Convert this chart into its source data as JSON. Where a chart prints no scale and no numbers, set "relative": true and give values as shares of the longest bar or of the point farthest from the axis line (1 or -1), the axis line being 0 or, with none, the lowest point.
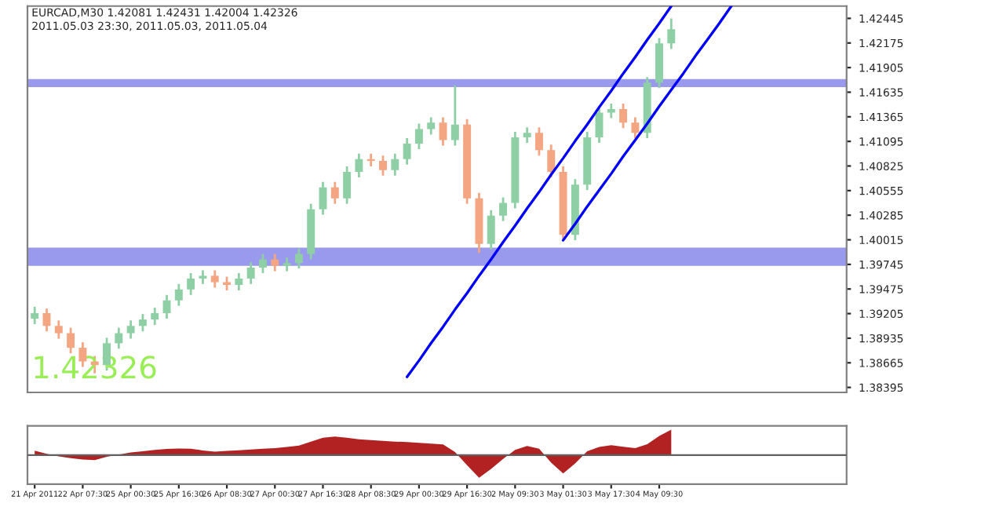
{
  "chart_data": [
    {
      "type": "candlestick",
      "title": "EURCAD,M30 1.42081 1.42431 1.42004 1.42326",
      "subtitle": "2011.05.03 23:30, 2011.05.03, 2011.05.04",
      "annotations": [
        "1.42326"
      ],
      "categories": [
        null,
        null,
        null,
        null,
        null,
        null,
        null,
        null,
        null,
        null,
        null,
        null,
        null,
        null,
        null,
        null,
        null,
        null,
        null,
        null,
        null,
        null,
        null,
        null,
        null,
        null,
        null,
        null,
        null,
        null,
        null,
        null,
        null,
        null,
        null,
        null,
        null,
        null,
        null,
        null,
        null,
        null,
        null,
        null,
        null,
        null,
        null,
        null,
        null,
        null,
        null,
        null,
        null,
        null,
        null,
        null,
        null,
        null,
        null,
        null,
        null,
        null,
        null,
        null,
        null,
        null,
        null,
        null
      ],
      "ohlc": [
        [
          1.3915,
          1.3928,
          1.3909,
          1.3921
        ],
        [
          1.3921,
          1.3926,
          1.3901,
          1.3907
        ],
        [
          1.3907,
          1.3913,
          1.3893,
          1.3899
        ],
        [
          1.3899,
          1.3905,
          1.3877,
          1.3883
        ],
        [
          1.3883,
          1.3889,
          1.3862,
          1.3868
        ],
        [
          1.3868,
          1.3874,
          1.3855,
          1.3864
        ],
        [
          1.3864,
          1.3894,
          1.3858,
          1.3888
        ],
        [
          1.3888,
          1.3905,
          1.3882,
          1.3899
        ],
        [
          1.3899,
          1.3913,
          1.3893,
          1.3907
        ],
        [
          1.3907,
          1.392,
          1.3901,
          1.3914
        ],
        [
          1.3914,
          1.3927,
          1.3908,
          1.3921
        ],
        [
          1.3921,
          1.3941,
          1.3915,
          1.3935
        ],
        [
          1.3935,
          1.3953,
          1.3929,
          1.3947
        ],
        [
          1.3947,
          1.3965,
          1.3941,
          1.3959
        ],
        [
          1.3959,
          1.3968,
          1.3953,
          1.3962
        ],
        [
          1.3962,
          1.3968,
          1.3949,
          1.3955
        ],
        [
          1.3955,
          1.3961,
          1.3946,
          1.3952
        ],
        [
          1.3952,
          1.3965,
          1.3946,
          1.3959
        ],
        [
          1.3959,
          1.3977,
          1.3953,
          1.3971
        ],
        [
          1.3971,
          1.3986,
          1.3965,
          1.398
        ],
        [
          1.398,
          1.3986,
          1.3967,
          1.3973
        ],
        [
          1.3973,
          1.3982,
          1.3967,
          1.3976
        ],
        [
          1.3976,
          1.3992,
          1.397,
          1.3986
        ],
        [
          1.3986,
          1.4041,
          1.398,
          1.4035
        ],
        [
          1.4035,
          1.4065,
          1.4029,
          1.4059
        ],
        [
          1.4059,
          1.4065,
          1.4041,
          1.4047
        ],
        [
          1.4047,
          1.4082,
          1.4041,
          1.4076
        ],
        [
          1.4076,
          1.4096,
          1.407,
          1.409
        ],
        [
          1.409,
          1.4096,
          1.4082,
          1.4088
        ],
        [
          1.4088,
          1.4094,
          1.4072,
          1.4078
        ],
        [
          1.4078,
          1.4096,
          1.4072,
          1.409
        ],
        [
          1.409,
          1.4113,
          1.4084,
          1.4107
        ],
        [
          1.4107,
          1.4129,
          1.4101,
          1.4123
        ],
        [
          1.4123,
          1.4136,
          1.4117,
          1.413
        ],
        [
          1.413,
          1.4136,
          1.4105,
          1.4111
        ],
        [
          1.4111,
          1.4171,
          1.4105,
          1.4128
        ],
        [
          1.4128,
          1.4134,
          1.4041,
          1.4047
        ],
        [
          1.4047,
          1.4053,
          1.3987,
          1.3997
        ],
        [
          1.3997,
          1.4034,
          1.3991,
          1.4028
        ],
        [
          1.4028,
          1.4048,
          1.4022,
          1.4042
        ],
        [
          1.4042,
          1.412,
          1.4036,
          1.4114
        ],
        [
          1.4114,
          1.4125,
          1.4108,
          1.4119
        ],
        [
          1.4119,
          1.4125,
          1.4094,
          1.41
        ],
        [
          1.41,
          1.4106,
          1.407,
          1.4076
        ],
        [
          1.4076,
          1.4082,
          1.4002,
          1.4007
        ],
        [
          1.4007,
          1.4068,
          1.4001,
          1.4062
        ],
        [
          1.4062,
          1.412,
          1.4056,
          1.4114
        ],
        [
          1.4114,
          1.4147,
          1.4108,
          1.4141
        ],
        [
          1.4141,
          1.4151,
          1.4135,
          1.4145
        ],
        [
          1.4145,
          1.4151,
          1.4124,
          1.413
        ],
        [
          1.413,
          1.4136,
          1.4113,
          1.4119
        ],
        [
          1.4119,
          1.418,
          1.4113,
          1.4174
        ],
        [
          1.4174,
          1.4223,
          1.4168,
          1.4217
        ],
        [
          1.4217,
          1.42445,
          1.4211,
          1.42326
        ],
        null,
        null,
        null,
        null,
        null,
        null,
        null,
        null,
        null,
        null,
        null,
        null,
        null,
        null
      ],
      "colors": [
        "#8fcfa5",
        "#f4a582",
        "#f4a582",
        "#f4a582",
        "#f4a582",
        "#f4a582",
        "#8fcfa5",
        "#8fcfa5",
        "#8fcfa5",
        "#8fcfa5",
        "#8fcfa5",
        "#8fcfa5",
        "#8fcfa5",
        "#8fcfa5",
        "#8fcfa5",
        "#f4a582",
        "#f4a582",
        "#8fcfa5",
        "#8fcfa5",
        "#8fcfa5",
        "#f4a582",
        "#8fcfa5",
        "#8fcfa5",
        "#8fcfa5",
        "#8fcfa5",
        "#f4a582",
        "#8fcfa5",
        "#8fcfa5",
        "#f4a582",
        "#f4a582",
        "#8fcfa5",
        "#8fcfa5",
        "#8fcfa5",
        "#8fcfa5",
        "#f4a582",
        "#8fcfa5",
        "#f4a582",
        "#f4a582",
        "#8fcfa5",
        "#8fcfa5",
        "#8fcfa5",
        "#8fcfa5",
        "#f4a582",
        "#f4a582",
        "#f4a582",
        "#8fcfa5",
        "#8fcfa5",
        "#8fcfa5",
        "#8fcfa5",
        "#f4a582",
        "#f4a582",
        "#8fcfa5",
        "#8fcfa5",
        "#8fcfa5",
        null,
        null,
        null,
        null,
        null,
        null,
        null,
        null,
        null,
        null,
        null,
        null,
        null,
        null
      ],
      "series": [
        {
          "type": "line",
          "color": "#0000ff",
          "values": [
            null,
            null,
            null,
            null,
            null,
            null,
            null,
            null,
            null,
            null,
            null,
            null,
            null,
            null,
            null,
            null,
            null,
            null,
            null,
            null,
            null,
            null,
            null,
            null,
            null,
            null,
            null,
            null,
            null,
            null,
            null,
            1.3851,
            1.3869,
            1.3888,
            1.3906,
            1.3925,
            1.3943,
            1.3962,
            1.398,
            1.3999,
            1.4017,
            1.4036,
            1.4054,
            1.4073,
            1.4091,
            1.411,
            1.4128,
            1.4147,
            1.4165,
            1.4184,
            1.4202,
            1.4221,
            1.4239,
            1.4258,
            null,
            null,
            null,
            null,
            null,
            null,
            null,
            null,
            null,
            null,
            null,
            null,
            null,
            null
          ]
        },
        {
          "type": "line",
          "color": "#0000ff",
          "values": [
            null,
            null,
            null,
            null,
            null,
            null,
            null,
            null,
            null,
            null,
            null,
            null,
            null,
            null,
            null,
            null,
            null,
            null,
            null,
            null,
            null,
            null,
            null,
            null,
            null,
            null,
            null,
            null,
            null,
            null,
            null,
            null,
            null,
            null,
            null,
            null,
            null,
            null,
            null,
            null,
            null,
            null,
            null,
            null,
            1.4001,
            1.4019,
            1.4038,
            1.4056,
            1.4074,
            1.4093,
            1.4111,
            1.4129,
            1.4148,
            1.4166,
            1.4184,
            1.4203,
            1.4221,
            1.4239,
            1.4258,
            null,
            null,
            null,
            null,
            null,
            null,
            null,
            null,
            null
          ]
        }
      ],
      "bands": [
        {
          "axis": "y",
          "from": 1.4169,
          "to": 1.4178,
          "color": "#9999ee"
        },
        {
          "axis": "y",
          "from": 1.3973,
          "to": 1.3993,
          "color": "#9999ee"
        }
      ],
      "ylim": [
        1.3834,
        1.4258
      ],
      "yticks": [
        1.38395,
        1.38665,
        1.38935,
        1.39205,
        1.39475,
        1.39745,
        1.40015,
        1.40285,
        1.40555,
        1.40825,
        1.41095,
        1.41365,
        1.41635,
        1.41905,
        1.42175,
        1.42445
      ],
      "tick_labels": "y",
      "grid": false
    },
    {
      "type": "area",
      "relative": true,
      "tick_labels": "x",
      "categories": [
        "21 Apr 2011",
        null,
        null,
        null,
        "22 Apr 07:30",
        null,
        null,
        null,
        "25 Apr 00:30",
        null,
        null,
        null,
        "25 Apr 16:30",
        null,
        null,
        null,
        "26 Apr 08:30",
        null,
        null,
        null,
        "27 Apr 00:30",
        null,
        null,
        null,
        "27 Apr 16:30",
        null,
        null,
        null,
        "28 Apr 08:30",
        null,
        null,
        null,
        "29 Apr 00:30",
        null,
        null,
        null,
        "29 Apr 16:30",
        null,
        null,
        null,
        "2 May 09:30",
        null,
        null,
        null,
        "3 May 01:30",
        null,
        null,
        null,
        "3 May 17:30",
        null,
        null,
        null,
        "4 May 09:30",
        null,
        null,
        null,
        null,
        null,
        null,
        null,
        null,
        null,
        null,
        null,
        null,
        null,
        null,
        null
      ],
      "series": [
        {
          "color": "#b22222",
          "values": [
            0.17,
            0.05,
            -0.05,
            -0.12,
            -0.18,
            -0.2,
            -0.07,
            0.02,
            0.1,
            0.15,
            0.2,
            0.24,
            0.26,
            0.25,
            0.18,
            0.13,
            0.16,
            0.19,
            0.22,
            0.25,
            0.27,
            0.32,
            0.37,
            0.53,
            0.68,
            0.73,
            0.68,
            0.62,
            0.59,
            0.56,
            0.53,
            0.51,
            0.48,
            0.45,
            0.42,
            0.12,
            -0.4,
            -0.9,
            -0.55,
            -0.15,
            0.2,
            0.36,
            0.25,
            -0.3,
            -0.73,
            -0.33,
            0.15,
            0.32,
            0.39,
            0.33,
            0.27,
            0.43,
            0.75,
            1,
            null,
            null,
            null,
            null,
            null,
            null,
            null,
            null,
            null,
            null,
            null,
            null,
            null,
            null
          ]
        }
      ],
      "grid": false
    }
  ]
}
